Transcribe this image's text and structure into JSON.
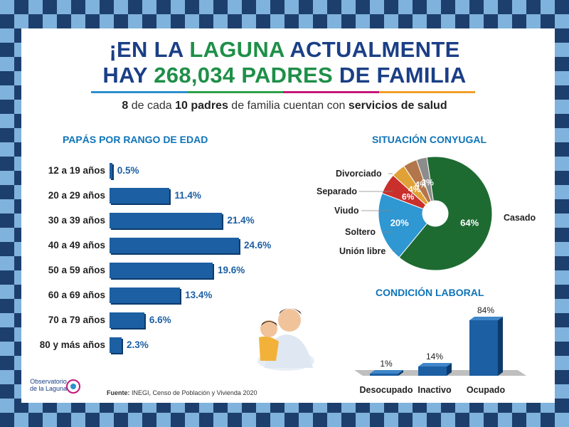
{
  "header": {
    "title_line1_a": "¡EN LA ",
    "title_line1_b": "LAGUNA",
    "title_line1_c": " ACTUALMENTE",
    "title_line2_a": "HAY ",
    "title_line2_b": "268,034 PADRES",
    "title_line2_c": " DE FAMILIA",
    "subtitle_a": "8",
    "subtitle_b": " de cada ",
    "subtitle_c": "10 padres",
    "subtitle_d": " de familia cuentan con ",
    "subtitle_e": "servicios de salud"
  },
  "footer": {
    "source_label": "Fuente:",
    "source_text": "INEGI, Censo de Población y Vivienda 2020",
    "logo_line1": "Observatorio",
    "logo_line2": "de la Laguna"
  },
  "colors": {
    "bar_blue": "#1c5fa3",
    "title_blue": "#1b3f86",
    "green": "#1f8f48",
    "section_blue": "#0f74b8"
  },
  "chart_data": [
    {
      "type": "bar",
      "orientation": "horizontal",
      "title": "PAPÁS POR RANGO DE EDAD",
      "categories": [
        "12 a 19 años",
        "20 a 29 años",
        "30 a 39 años",
        "40 a 49 años",
        "50 a 59 años",
        "60 a 69 años",
        "70 a 79 años",
        "80 y más años"
      ],
      "values": [
        0.5,
        11.4,
        21.4,
        24.6,
        19.6,
        13.4,
        6.6,
        2.3
      ],
      "labels": [
        "0.5%",
        "11.4%",
        "21.4%",
        "24.6%",
        "19.6%",
        "13.4%",
        "6.6%",
        "2.3%"
      ]
    },
    {
      "type": "pie",
      "title": "SITUACIÓN CONYUGAL",
      "categories": [
        "Casado",
        "Unión libre",
        "Soltero",
        "Viudo",
        "Separado",
        "Divorciado"
      ],
      "values": [
        64,
        20,
        6,
        4,
        4,
        3
      ],
      "labels": [
        "64%",
        "20%",
        "6%",
        "4%",
        "4%",
        "3%"
      ],
      "colors": [
        "#1e6b32",
        "#2f97d2",
        "#c9302c",
        "#e0a136",
        "#b3764a",
        "#8c8c8c"
      ]
    },
    {
      "type": "bar",
      "title": "CONDICIÓN LABORAL",
      "categories": [
        "Desocupado",
        "Inactivo",
        "Ocupado"
      ],
      "values": [
        1,
        14,
        84
      ],
      "labels": [
        "1%",
        "14%",
        "84%"
      ]
    }
  ]
}
